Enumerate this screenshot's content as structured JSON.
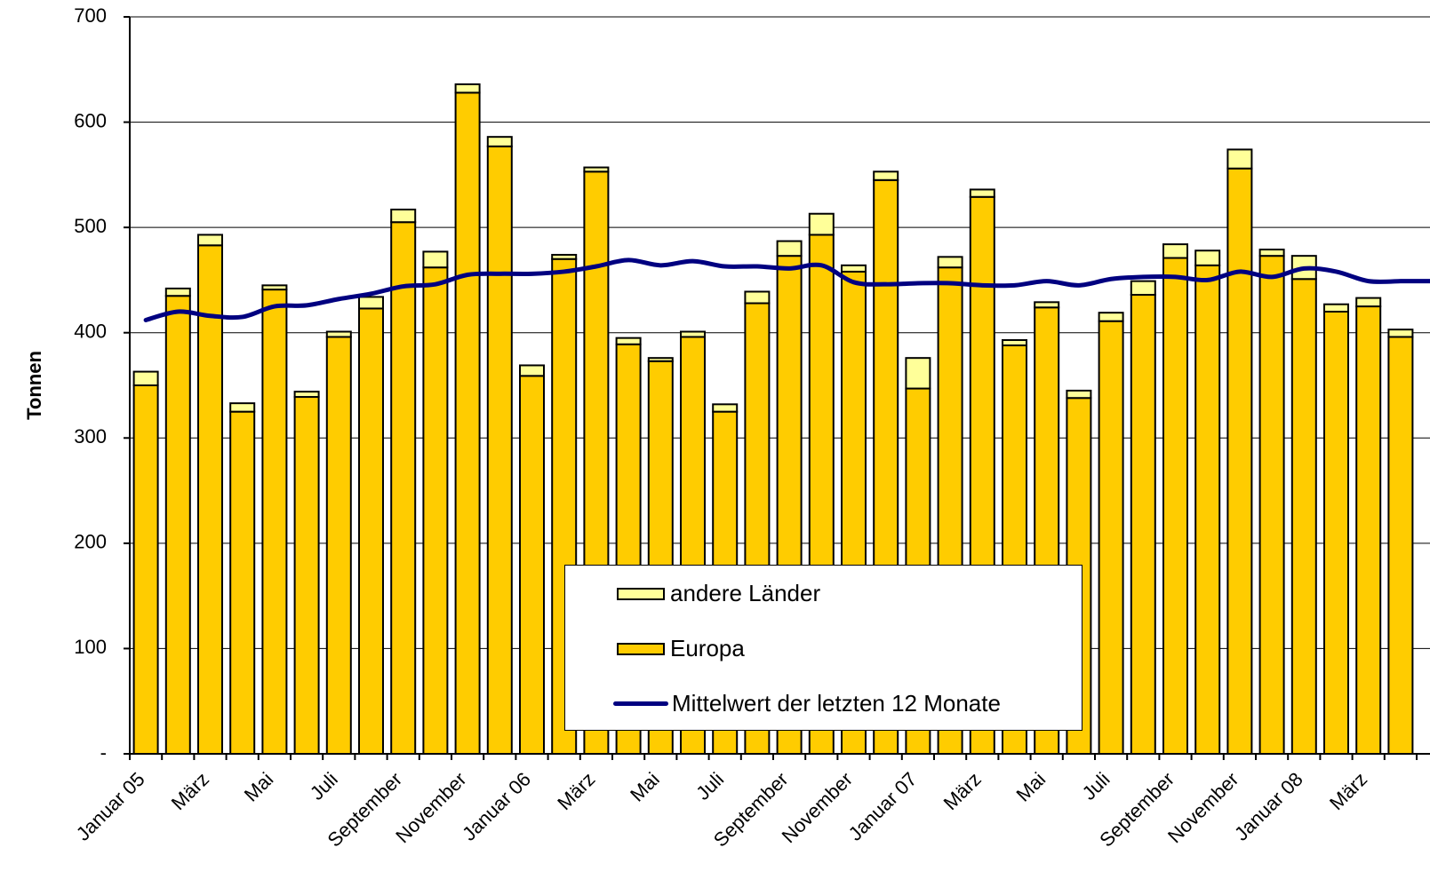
{
  "chart_data": {
    "type": "bar",
    "stacked": true,
    "ylabel": "Tonnen",
    "ylim": [
      0,
      700
    ],
    "yticks": [
      {
        "value": 0,
        "label": "-"
      },
      {
        "value": 100,
        "label": "100"
      },
      {
        "value": 200,
        "label": "200"
      },
      {
        "value": 300,
        "label": "300"
      },
      {
        "value": 400,
        "label": "400"
      },
      {
        "value": 500,
        "label": "500"
      },
      {
        "value": 600,
        "label": "600"
      },
      {
        "value": 700,
        "label": "700"
      }
    ],
    "grid": true,
    "legend_position": "bottom-center",
    "categories": [
      "Januar 05",
      "",
      "März",
      "",
      "Mai",
      "",
      "Juli",
      "",
      "September",
      "",
      "November",
      "",
      "Januar 06",
      "",
      "März",
      "",
      "Mai",
      "",
      "Juli",
      "",
      "September",
      "",
      "November",
      "",
      "Januar 07",
      "",
      "März",
      "",
      "Mai",
      "",
      "Juli",
      "",
      "September",
      "",
      "November",
      "",
      "Januar 08",
      "",
      "März",
      ""
    ],
    "series": [
      {
        "name": "Europa",
        "kind": "bar",
        "color": "#FFCC00",
        "values": [
          350,
          435,
          483,
          325,
          441,
          339,
          396,
          423,
          505,
          462,
          628,
          577,
          359,
          470,
          553,
          389,
          373,
          396,
          325,
          428,
          473,
          493,
          458,
          545,
          347,
          462,
          529,
          388,
          424,
          338,
          411,
          436,
          471,
          464,
          556,
          473,
          451,
          420,
          425,
          396
        ]
      },
      {
        "name": "andere Länder",
        "kind": "bar",
        "color": "#FFFF99",
        "values": [
          13,
          7,
          10,
          8,
          4,
          5,
          5,
          11,
          12,
          15,
          8,
          9,
          10,
          4,
          4,
          6,
          3,
          5,
          7,
          11,
          14,
          20,
          6,
          8,
          29,
          10,
          7,
          5,
          5,
          7,
          8,
          13,
          13,
          14,
          18,
          6,
          22,
          7,
          8,
          7
        ]
      },
      {
        "name": "Mittelwert der letzten 12 Monate",
        "kind": "line",
        "color": "#000080",
        "values": [
          412,
          420,
          416,
          415,
          425,
          426,
          432,
          437,
          444,
          446,
          455,
          456,
          456,
          458,
          463,
          469,
          464,
          468,
          463,
          463,
          461,
          464,
          448,
          446,
          447,
          447,
          445,
          445,
          449,
          445,
          451,
          453,
          453,
          450,
          458,
          453,
          461,
          458,
          449,
          449
        ]
      }
    ]
  },
  "legend": {
    "items": [
      "andere Länder",
      "Europa",
      "Mittelwert der letzten 12 Monate"
    ]
  }
}
